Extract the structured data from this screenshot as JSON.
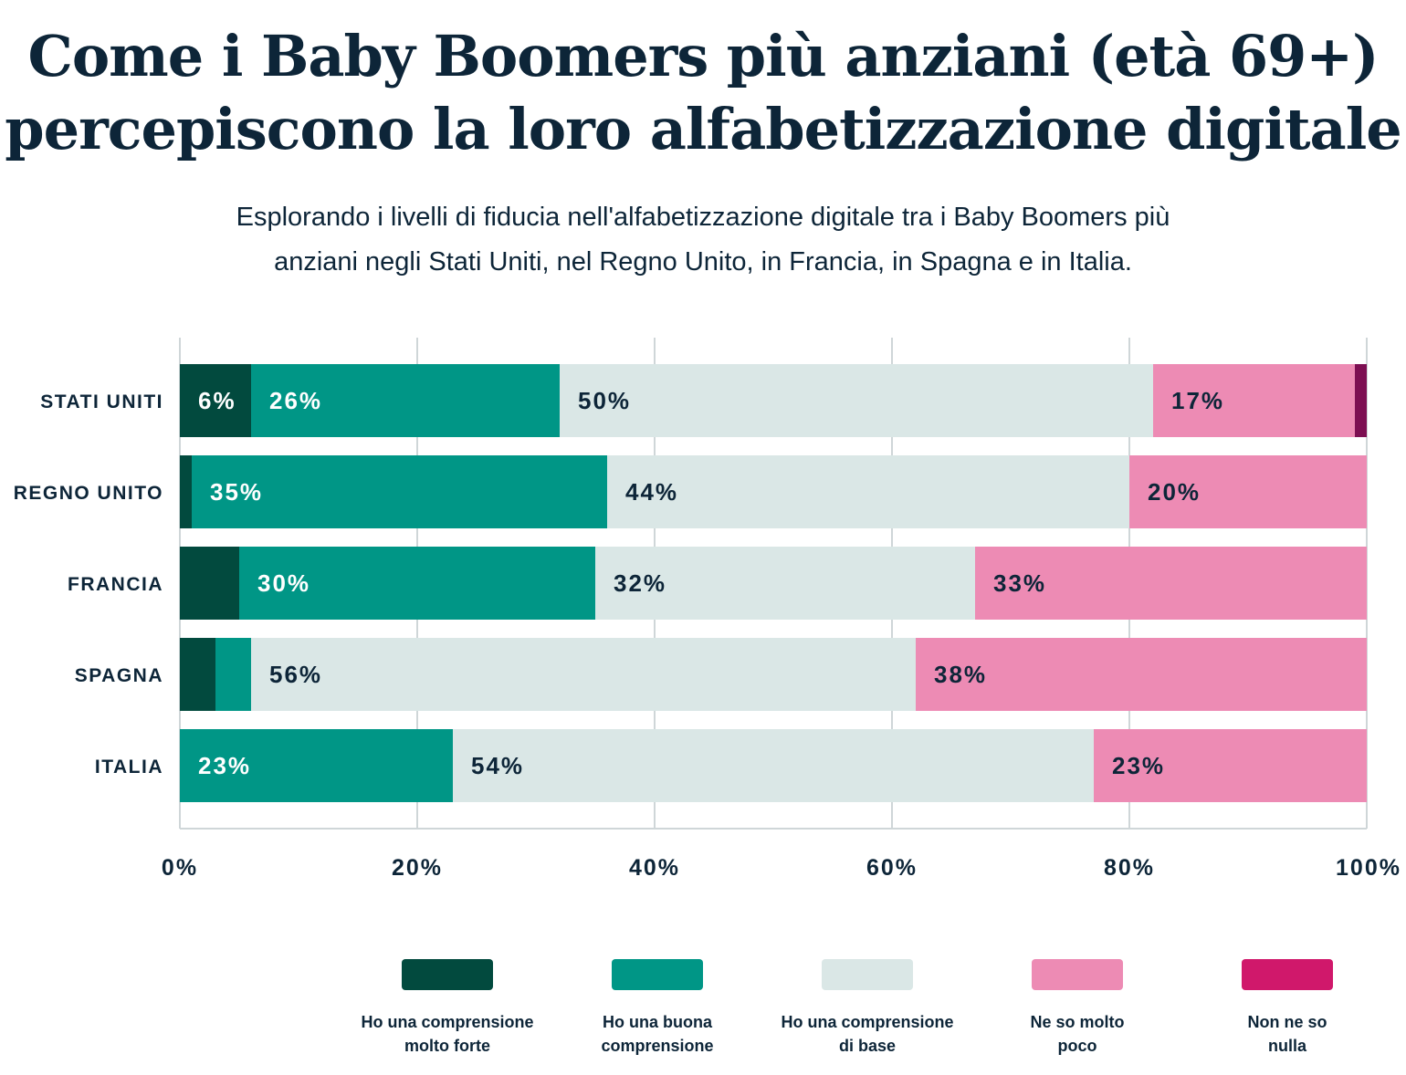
{
  "title_line1": "Come i Baby Boomers più anziani (età 69+)",
  "title_line2": "percepiscono la loro alfabetizzazione digitale",
  "subtitle_line1": "Esplorando i livelli di fiducia nell'alfabetizzazione digitale tra i Baby Boomers più",
  "subtitle_line2": "anziani negli Stati Uniti, nel Regno Unito, in Francia, in Spagna e in Italia.",
  "chart_data": {
    "type": "bar",
    "orientation": "horizontal",
    "stacked": true,
    "categories": [
      "STATI UNITI",
      "REGNO UNITO",
      "FRANCIA",
      "SPAGNA",
      "ITALIA"
    ],
    "series": [
      {
        "name": "Ho una comprensione molto forte",
        "values": [
          6,
          1,
          5,
          3,
          0
        ],
        "color": "#024a3e",
        "legend_color": "#024a3e"
      },
      {
        "name": "Ho una buona comprensione",
        "values": [
          26,
          35,
          30,
          3,
          23
        ],
        "color": "#009686",
        "legend_color": "#009686"
      },
      {
        "name": "Ho una comprensione di base",
        "values": [
          50,
          44,
          32,
          56,
          54
        ],
        "color": "#dae7e6",
        "legend_color": "#dae7e6"
      },
      {
        "name": "Ne so molto poco",
        "values": [
          17,
          20,
          33,
          38,
          23
        ],
        "color": "#ed8bb4",
        "legend_color": "#ed8bb4"
      },
      {
        "name": "Non ne so nulla",
        "values": [
          1,
          0,
          0,
          0,
          0
        ],
        "color": "#7d0f52",
        "legend_color": "#d0186b"
      }
    ],
    "legend_lines": [
      [
        "Ho una comprensione",
        "molto forte"
      ],
      [
        "Ho una buona",
        "comprensione"
      ],
      [
        "Ho una comprensione",
        "di base"
      ],
      [
        "Ne so molto",
        "poco"
      ],
      [
        "Non ne so",
        "nulla"
      ]
    ],
    "xticks": [
      "0%",
      "20%",
      "40%",
      "60%",
      "80%",
      "100%"
    ],
    "xlim": [
      0,
      100
    ],
    "grid": true,
    "legend": "bottom"
  }
}
